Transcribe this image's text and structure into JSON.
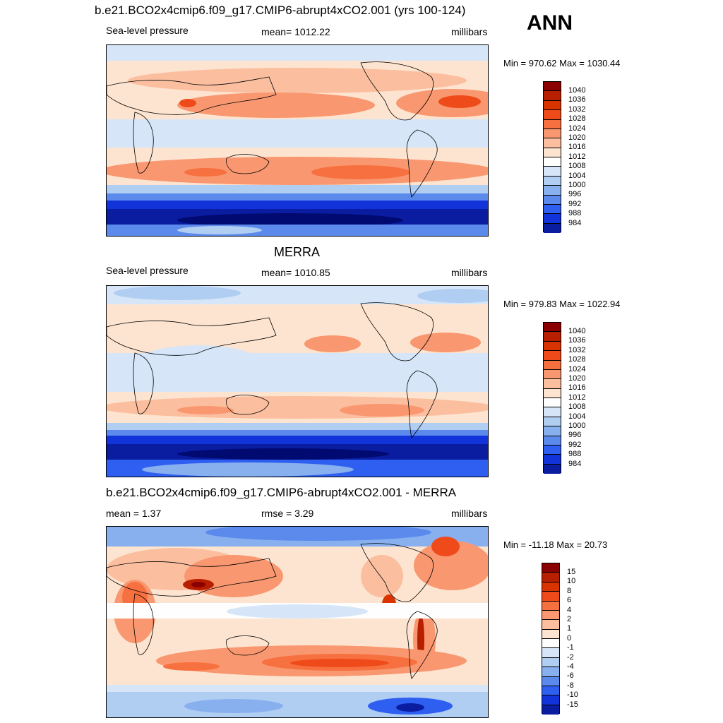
{
  "header": {
    "ann": "ANN"
  },
  "panels": [
    {
      "title": "b.e21.BCO2x4cmip6.f09_g17.CMIP6-abrupt4xCO2.001 (yrs 100-124)",
      "left": "Sea-level pressure",
      "center": "mean= 1012.22",
      "right": "millibars",
      "minmax": "Min = 970.62 Max = 1030.44"
    },
    {
      "title": "MERRA",
      "left": "Sea-level pressure",
      "center": "mean= 1010.85",
      "right": "millibars",
      "minmax": "Min = 979.83 Max = 1022.94"
    },
    {
      "title": "b.e21.BCO2x4cmip6.f09_g17.CMIP6-abrupt4xCO2.001 - MERRA",
      "left": "mean =   1.37",
      "center": "rmse =   3.29",
      "right": "millibars",
      "minmax": "Min = -11.18 Max =  20.73"
    }
  ],
  "colorbars": {
    "slp": {
      "labels": [
        "1040",
        "1036",
        "1032",
        "1028",
        "1024",
        "1020",
        "1016",
        "1012",
        "1008",
        "1004",
        "1000",
        "996",
        "992",
        "988",
        "984"
      ],
      "colors": [
        "#8b0000",
        "#b81e00",
        "#d93300",
        "#ef4a1a",
        "#f7703f",
        "#f99870",
        "#fbbfa0",
        "#fde4d0",
        "#fefefe",
        "#d6e6f8",
        "#b0cdf2",
        "#88b0ee",
        "#5b8aec",
        "#2f5ff0",
        "#1233d9",
        "#0a1ca0"
      ]
    },
    "diff": {
      "labels": [
        "15",
        "10",
        "8",
        "6",
        "4",
        "2",
        "1",
        "0",
        "-1",
        "-2",
        "-4",
        "-6",
        "-8",
        "-10",
        "-15"
      ],
      "colors": [
        "#8b0000",
        "#b81e00",
        "#d93300",
        "#ef4a1a",
        "#f7703f",
        "#f99870",
        "#fbbfa0",
        "#fde4d0",
        "#fefefe",
        "#d6e6f8",
        "#b0cdf2",
        "#88b0ee",
        "#5b8aec",
        "#2f5ff0",
        "#1233d9",
        "#0a1ca0"
      ]
    }
  }
}
